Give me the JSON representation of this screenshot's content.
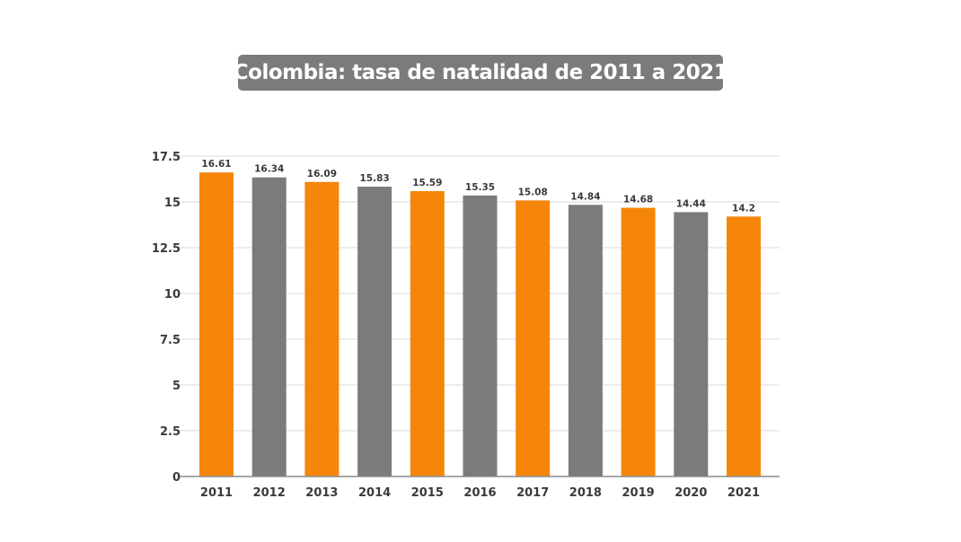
{
  "title": "Colombia: tasa de natalidad de 2011 a 2021",
  "colors": {
    "orange": "#f5860a",
    "gray": "#7a7b7a",
    "title_bg": "#7a7b7a",
    "gridline": "#d9d9d9",
    "axis": "#8c8c8c",
    "text": "#3a3a3a"
  },
  "chart_data": {
    "type": "bar",
    "title": "Colombia: tasa de natalidad de 2011 a 2021",
    "xlabel": "",
    "ylabel": "",
    "categories": [
      "2011",
      "2012",
      "2013",
      "2014",
      "2015",
      "2016",
      "2017",
      "2018",
      "2019",
      "2020",
      "2021"
    ],
    "values": [
      16.61,
      16.34,
      16.09,
      15.83,
      15.59,
      15.35,
      15.08,
      14.84,
      14.68,
      14.44,
      14.2
    ],
    "data_labels": [
      "16.61",
      "16.34",
      "16.09",
      "15.83",
      "15.59",
      "15.35",
      "15.08",
      "14.84",
      "14.68",
      "14.44",
      "14.2"
    ],
    "bar_colors": [
      "orange",
      "gray",
      "orange",
      "gray",
      "orange",
      "gray",
      "orange",
      "gray",
      "orange",
      "gray",
      "orange"
    ],
    "ylim": [
      0,
      17.5
    ],
    "yticks": [
      0,
      2.5,
      5,
      7.5,
      10,
      12.5,
      15,
      17.5
    ],
    "ytick_labels": [
      "0",
      "2.5",
      "5",
      "7.5",
      "10",
      "12.5",
      "15",
      "17.5"
    ],
    "grid": true,
    "legend": "none"
  }
}
